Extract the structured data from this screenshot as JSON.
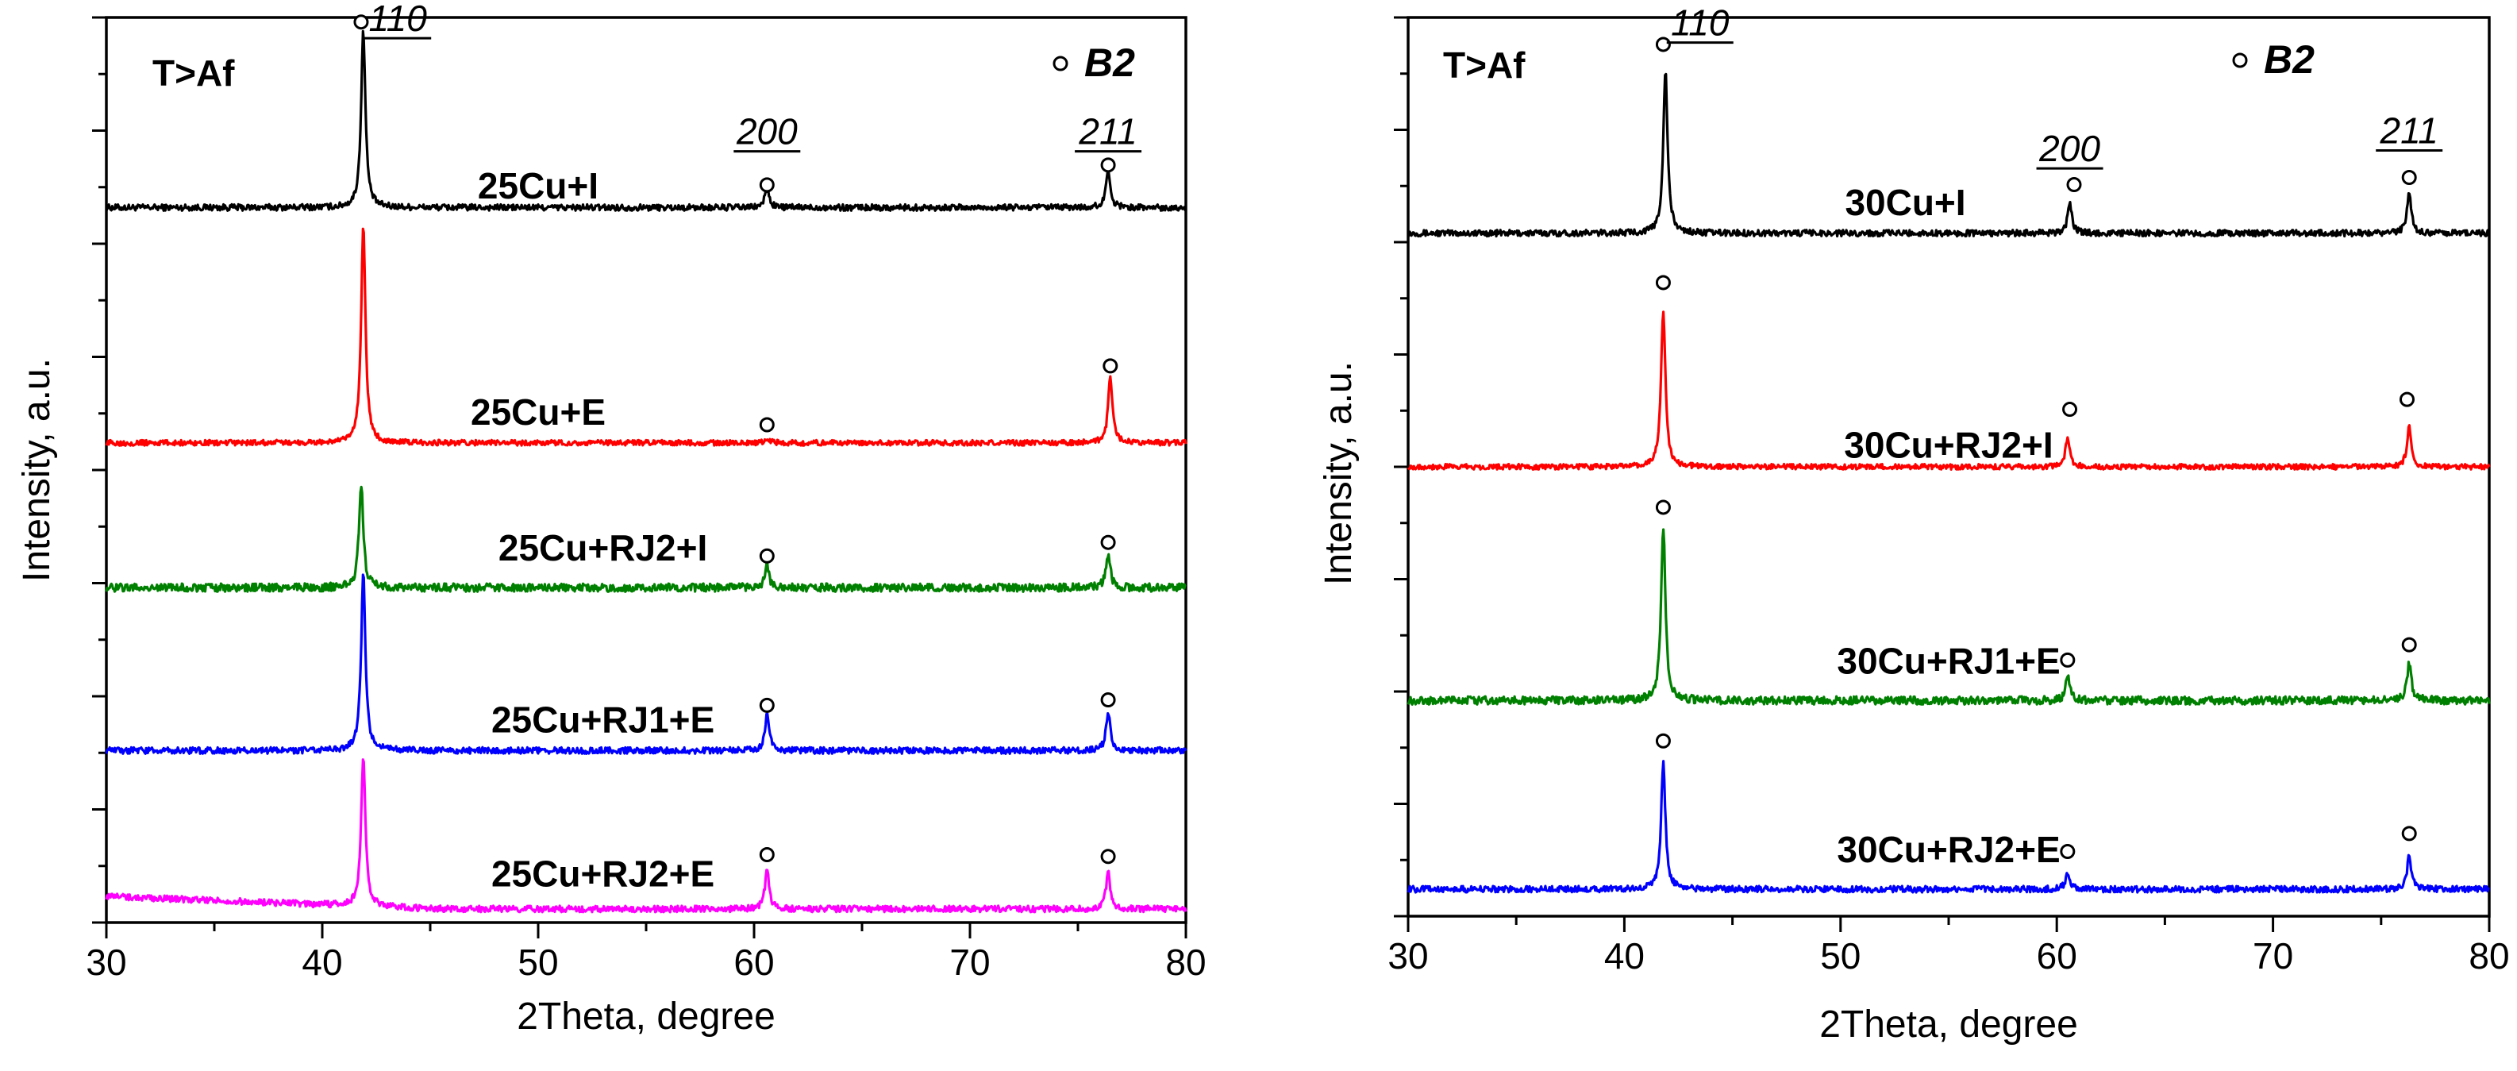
{
  "chart_data": [
    {
      "type": "line",
      "xlabel": "2Theta, degree",
      "ylabel": "Intensity, a.u.",
      "xlim": [
        30,
        80
      ],
      "xticks": [
        30,
        40,
        50,
        60,
        70,
        80
      ],
      "xtick_labels": [
        "30",
        "40",
        "50",
        "60",
        "70",
        "80"
      ],
      "ylim": [
        0,
        100
      ],
      "annotation": "T>Af",
      "legend": {
        "marker": "open-circle",
        "label": "B2"
      },
      "hkl_labels": [
        {
          "text": "110",
          "x": 43.5,
          "y": 98.5
        },
        {
          "text": "200",
          "x": 60.6,
          "y": 86
        },
        {
          "text": "211",
          "x": 76.4,
          "y": 86
        }
      ],
      "series": [
        {
          "name": "25Cu+I",
          "color": "#000000",
          "baseline": 79,
          "noise": 0.35,
          "peaks": [
            {
              "x": 41.9,
              "h": 19.5
            },
            {
              "x": 60.6,
              "h": 2.1
            },
            {
              "x": 76.4,
              "h": 4.2
            }
          ]
        },
        {
          "name": "25Cu+E",
          "color": "#ff0000",
          "baseline": 53,
          "noise": 0.3,
          "peaks": [
            {
              "x": 41.9,
              "h": 24
            },
            {
              "x": 60.6,
              "h": 0.6
            },
            {
              "x": 76.5,
              "h": 7.3
            }
          ]
        },
        {
          "name": "25Cu+RJ2+I",
          "color": "#008000",
          "baseline": 37,
          "noise": 0.45,
          "peaks": [
            {
              "x": 41.8,
              "h": 11.5
            },
            {
              "x": 60.6,
              "h": 2.3
            },
            {
              "x": 76.4,
              "h": 3.7
            }
          ]
        },
        {
          "name": "25Cu+RJ1+E",
          "color": "#0000ff",
          "baseline": 19,
          "noise": 0.35,
          "peaks": [
            {
              "x": 41.9,
              "h": 19.5
            },
            {
              "x": 60.6,
              "h": 3.9
            },
            {
              "x": 76.4,
              "h": 4.2
            }
          ]
        },
        {
          "name": "25Cu+RJ2+E",
          "color": "#ff00ff",
          "baseline": 1.5,
          "noise": 0.35,
          "slope": 1.4,
          "peaks": [
            {
              "x": 41.9,
              "h": 16.5
            },
            {
              "x": 60.6,
              "h": 4.2
            },
            {
              "x": 76.4,
              "h": 4.0
            }
          ]
        }
      ],
      "series_labels": [
        {
          "text": "25Cu+I",
          "x": 50,
          "y": 80
        },
        {
          "text": "25Cu+E",
          "x": 50,
          "y": 55
        },
        {
          "text": "25Cu+RJ2+I",
          "x": 53,
          "y": 40
        },
        {
          "text": "25Cu+RJ1+E",
          "x": 53,
          "y": 21
        },
        {
          "text": "25Cu+RJ2+E",
          "x": 53,
          "y": 4
        }
      ],
      "markers": [
        {
          "x": 41.8,
          "y": 99.5
        },
        {
          "x": 60.6,
          "y": 81.5
        },
        {
          "x": 76.4,
          "y": 83.7
        },
        {
          "x": 60.6,
          "y": 55
        },
        {
          "x": 76.5,
          "y": 61.5
        },
        {
          "x": 60.6,
          "y": 40.5
        },
        {
          "x": 76.4,
          "y": 42
        },
        {
          "x": 60.6,
          "y": 24
        },
        {
          "x": 76.4,
          "y": 24.6
        },
        {
          "x": 60.6,
          "y": 7.5
        },
        {
          "x": 76.4,
          "y": 7.3
        }
      ]
    },
    {
      "type": "line",
      "xlabel": "2Theta, degree",
      "ylabel": "Intensity, a.u.",
      "xlim": [
        30,
        80
      ],
      "xticks": [
        30,
        40,
        50,
        60,
        70,
        80
      ],
      "xtick_labels": [
        "30",
        "40",
        "50",
        "60",
        "70",
        "80"
      ],
      "ylim": [
        0,
        100
      ],
      "annotation": "T>Af",
      "legend": {
        "marker": "open-circle",
        "label": "B2"
      },
      "hkl_labels": [
        {
          "text": "110",
          "x": 43.5,
          "y": 98
        },
        {
          "text": "200",
          "x": 60.6,
          "y": 84
        },
        {
          "text": "211",
          "x": 76.3,
          "y": 86
        }
      ],
      "series": [
        {
          "name": "30Cu+I",
          "color": "#000000",
          "baseline": 76,
          "noise": 0.35,
          "peaks": [
            {
              "x": 41.9,
              "h": 18
            },
            {
              "x": 60.6,
              "h": 3.2
            },
            {
              "x": 76.3,
              "h": 4.5
            }
          ]
        },
        {
          "name": "30Cu+RJ2+I",
          "color": "#ff0000",
          "baseline": 50,
          "noise": 0.3,
          "peaks": [
            {
              "x": 41.8,
              "h": 17.5
            },
            {
              "x": 60.5,
              "h": 3.2
            },
            {
              "x": 76.3,
              "h": 4.5
            }
          ]
        },
        {
          "name": "30Cu+RJ1+E",
          "color": "#008000",
          "baseline": 24,
          "noise": 0.45,
          "peaks": [
            {
              "x": 41.8,
              "h": 19.5
            },
            {
              "x": 60.5,
              "h": 2.7
            },
            {
              "x": 76.3,
              "h": 4.2
            }
          ]
        },
        {
          "name": "30Cu+RJ2+E",
          "color": "#0000ff",
          "baseline": 3,
          "noise": 0.35,
          "peaks": [
            {
              "x": 41.8,
              "h": 14
            },
            {
              "x": 60.5,
              "h": 1.8
            },
            {
              "x": 76.3,
              "h": 3.7
            }
          ]
        }
      ],
      "series_labels": [
        {
          "text": "30Cu+I",
          "x": 53,
          "y": 78
        },
        {
          "text": "30Cu+RJ2+I",
          "x": 55,
          "y": 51
        },
        {
          "text": "30Cu+RJ1+E",
          "x": 55,
          "y": 27
        },
        {
          "text": "30Cu+RJ2+E",
          "x": 55,
          "y": 6
        }
      ],
      "markers": [
        {
          "x": 41.8,
          "y": 97
        },
        {
          "x": 60.8,
          "y": 81.4
        },
        {
          "x": 76.3,
          "y": 82.2
        },
        {
          "x": 41.8,
          "y": 70.5
        },
        {
          "x": 60.6,
          "y": 56.4
        },
        {
          "x": 76.2,
          "y": 57.5
        },
        {
          "x": 41.8,
          "y": 45.5
        },
        {
          "x": 60.5,
          "y": 28.5
        },
        {
          "x": 76.3,
          "y": 30.2
        },
        {
          "x": 41.8,
          "y": 19.5
        },
        {
          "x": 60.5,
          "y": 7.2
        },
        {
          "x": 76.3,
          "y": 9.2
        }
      ]
    }
  ]
}
